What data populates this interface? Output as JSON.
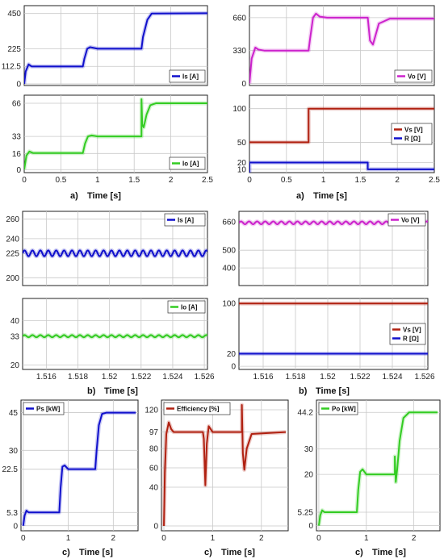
{
  "captions": {
    "row1_left": "a)",
    "row1_right": "a)",
    "row2_left": "b)",
    "row2_right": "b)",
    "row3_left": "c)",
    "row3_mid": "c)",
    "row3_right": "c)"
  },
  "xlabel": "Time [s]",
  "chart_data": [
    {
      "id": "is_a",
      "type": "line",
      "xlim": [
        0,
        2.5
      ],
      "ylim": [
        -10,
        500
      ],
      "xticks": [],
      "yticks": [
        0,
        112.5,
        225,
        450
      ],
      "ytick_labels": [
        "0",
        "112.5",
        "225",
        "450"
      ],
      "grid": true,
      "legend_position": "bottom-right",
      "series": [
        {
          "name": "Is [A]",
          "color": "#1010cc",
          "x": [
            0,
            0.02,
            0.06,
            0.1,
            0.2,
            0.8,
            0.82,
            0.86,
            0.9,
            1.0,
            1.6,
            1.62,
            1.68,
            1.74,
            2.5
          ],
          "y": [
            0,
            80,
            125,
            112,
            112,
            112,
            160,
            225,
            235,
            225,
            225,
            300,
            410,
            450,
            452
          ]
        }
      ]
    },
    {
      "id": "vo_a",
      "type": "line",
      "xlim": [
        0,
        2.5
      ],
      "ylim": [
        -20,
        780
      ],
      "xticks": [],
      "yticks": [
        0,
        330,
        660
      ],
      "ytick_labels": [
        "0",
        "330",
        "660"
      ],
      "grid": true,
      "legend_position": "bottom-right",
      "series": [
        {
          "name": "Vo [V]",
          "color": "#cc22cc",
          "x": [
            0,
            0.03,
            0.08,
            0.12,
            0.2,
            0.3,
            0.8,
            0.82,
            0.86,
            0.9,
            0.95,
            1.05,
            1.6,
            1.63,
            1.67,
            1.75,
            1.9,
            2.5
          ],
          "y": [
            0,
            250,
            360,
            340,
            330,
            330,
            330,
            450,
            660,
            700,
            670,
            660,
            660,
            430,
            390,
            600,
            650,
            650
          ]
        }
      ]
    },
    {
      "id": "io_a",
      "type": "line",
      "xlim": [
        0,
        2.5
      ],
      "ylim": [
        -3,
        74
      ],
      "xticks": [
        0,
        0.5,
        1,
        1.5,
        2,
        2.5
      ],
      "xtick_labels": [
        "0",
        "0.5",
        "1",
        "1.5",
        "2",
        "2.5"
      ],
      "yticks": [
        0,
        16,
        33,
        66
      ],
      "ytick_labels": [
        "0",
        "16",
        "33",
        "66"
      ],
      "grid": true,
      "legend_position": "bottom-right",
      "series": [
        {
          "name": "Io [A]",
          "color": "#33cc22",
          "x": [
            0,
            0.03,
            0.07,
            0.12,
            0.3,
            0.8,
            0.83,
            0.87,
            0.92,
            1.0,
            1.6,
            1.6,
            1.61,
            1.63,
            1.67,
            1.72,
            1.8,
            2.5
          ],
          "y": [
            0,
            14,
            18,
            16.5,
            16.5,
            16.5,
            26,
            33,
            34,
            33,
            33,
            70,
            45,
            42,
            55,
            64,
            66,
            66
          ]
        }
      ]
    },
    {
      "id": "vs_r_a",
      "type": "line",
      "xlim": [
        0,
        2.5
      ],
      "ylim": [
        5,
        120
      ],
      "xticks": [
        0,
        0.5,
        1,
        1.5,
        2,
        2.5
      ],
      "xtick_labels": [
        "0",
        "0.5",
        "1",
        "1.5",
        "2",
        "2.5"
      ],
      "yticks": [
        10,
        20,
        50,
        100
      ],
      "ytick_labels": [
        "10",
        "20",
        "50",
        "100"
      ],
      "grid": true,
      "legend_position": "center-right",
      "series": [
        {
          "name": "Vs [V]",
          "color": "#b02010",
          "x": [
            0,
            0.8,
            0.8,
            2.5
          ],
          "y": [
            50,
            50,
            100,
            100
          ]
        },
        {
          "name": "R [Ω]",
          "color": "#1010cc",
          "x": [
            0,
            0,
            0.01,
            1.6,
            1.6,
            2.5
          ],
          "y": [
            5,
            20,
            20,
            20,
            10,
            10
          ]
        }
      ]
    },
    {
      "id": "is_b",
      "type": "line",
      "xlim": [
        1.5145,
        1.5262
      ],
      "ylim": [
        192,
        268
      ],
      "xticks": [],
      "yticks": [
        200,
        225,
        240,
        260
      ],
      "ytick_labels": [
        "200",
        "225",
        "240",
        "260"
      ],
      "grid": true,
      "legend_position": "top-right",
      "ripple": {
        "period": 0.0005,
        "amplitude": 3
      },
      "series": [
        {
          "name": "Is [A]",
          "color": "#1010cc",
          "x": [
            1.5145,
            1.5262
          ],
          "y": [
            225,
            225
          ]
        }
      ]
    },
    {
      "id": "vo_b",
      "type": "line",
      "xlim": [
        1.5145,
        1.5262
      ],
      "ylim": [
        300,
        720
      ],
      "xticks": [],
      "yticks": [
        400,
        500,
        660
      ],
      "ytick_labels": [
        "400",
        "500",
        "660"
      ],
      "grid": true,
      "legend_position": "top-right",
      "ripple": {
        "period": 0.0005,
        "amplitude": 8
      },
      "series": [
        {
          "name": "Vo [V]",
          "color": "#cc22cc",
          "x": [
            1.5145,
            1.5262
          ],
          "y": [
            655,
            655
          ]
        }
      ]
    },
    {
      "id": "io_b",
      "type": "line",
      "xlim": [
        1.5145,
        1.5262
      ],
      "ylim": [
        18,
        50
      ],
      "xticks": [
        1.516,
        1.518,
        1.52,
        1.522,
        1.524,
        1.526
      ],
      "xtick_labels": [
        "1.516",
        "1.518",
        "1.52",
        "1.522",
        "1.524",
        "1.526"
      ],
      "yticks": [
        20,
        33,
        40
      ],
      "ytick_labels": [
        "20",
        "33",
        "40"
      ],
      "grid": true,
      "legend_position": "top-right",
      "ripple": {
        "period": 0.0005,
        "amplitude": 0.5
      },
      "series": [
        {
          "name": "Io [A]",
          "color": "#33cc22",
          "x": [
            1.5145,
            1.5262
          ],
          "y": [
            33,
            33
          ]
        }
      ]
    },
    {
      "id": "vs_r_b",
      "type": "line",
      "xlim": [
        1.5145,
        1.5262
      ],
      "ylim": [
        -5,
        108
      ],
      "xticks": [
        1.516,
        1.518,
        1.52,
        1.522,
        1.524,
        1.526
      ],
      "xtick_labels": [
        "1.516",
        "1.518",
        "1.52",
        "1.522",
        "1.524",
        "1.526"
      ],
      "yticks": [
        0,
        20,
        100
      ],
      "ytick_labels": [
        "0",
        "20",
        "100"
      ],
      "grid": true,
      "legend_position": "center-right",
      "series": [
        {
          "name": "Vs [V]",
          "color": "#b02010",
          "x": [
            1.5145,
            1.5262
          ],
          "y": [
            100,
            100
          ]
        },
        {
          "name": "R [Ω]",
          "color": "#1010cc",
          "x": [
            1.5145,
            1.5262
          ],
          "y": [
            20,
            20
          ]
        }
      ]
    },
    {
      "id": "ps_c",
      "type": "line",
      "xlim": [
        -0.05,
        2.55
      ],
      "ylim": [
        -2,
        50
      ],
      "xticks": [
        0,
        1,
        2
      ],
      "xtick_labels": [
        "0",
        "1",
        "2"
      ],
      "yticks": [
        0,
        5.3,
        22.5,
        30,
        45
      ],
      "ytick_labels": [
        "0",
        "5.3",
        "22.5",
        "30",
        "45"
      ],
      "grid": true,
      "legend_position": "top-left",
      "series": [
        {
          "name": "Ps [kW]",
          "color": "#1010cc",
          "x": [
            0,
            0.03,
            0.07,
            0.12,
            0.3,
            0.8,
            0.83,
            0.87,
            0.92,
            1.0,
            1.6,
            1.63,
            1.68,
            1.75,
            1.85,
            2.5
          ],
          "y": [
            0,
            4,
            6,
            5.3,
            5.3,
            5.3,
            15,
            23.5,
            24,
            22.5,
            22.5,
            30,
            40,
            44.5,
            45,
            45
          ]
        }
      ]
    },
    {
      "id": "eff_c",
      "type": "line",
      "xlim": [
        -0.05,
        2.55
      ],
      "ylim": [
        -5,
        130
      ],
      "xticks": [
        0,
        1,
        2
      ],
      "xtick_labels": [
        "0",
        "1",
        "2"
      ],
      "yticks": [
        0,
        40,
        60,
        80,
        97,
        120
      ],
      "ytick_labels": [
        "0",
        "40",
        "60",
        "80",
        "97",
        "120"
      ],
      "grid": true,
      "legend_position": "top-left",
      "series": [
        {
          "name": "Efficiency [%]",
          "color": "#b02010",
          "x": [
            0,
            0.02,
            0.05,
            0.1,
            0.15,
            0.2,
            0.8,
            0.82,
            0.85,
            0.88,
            0.92,
            1.0,
            1.6,
            1.6,
            1.62,
            1.65,
            1.7,
            1.8,
            2.5
          ],
          "y": [
            0,
            55,
            95,
            107,
            100,
            97,
            97,
            90,
            42,
            85,
            103,
            97,
            97,
            125,
            75,
            58,
            80,
            95,
            97
          ]
        }
      ]
    },
    {
      "id": "po_c",
      "type": "line",
      "xlim": [
        -0.05,
        2.55
      ],
      "ylim": [
        -2,
        49
      ],
      "xticks": [
        0,
        1,
        2
      ],
      "xtick_labels": [
        "0",
        "1",
        "2"
      ],
      "yticks": [
        0,
        5.25,
        20,
        30,
        44.2
      ],
      "ytick_labels": [
        "0",
        "5.25",
        "20",
        "30",
        "44.2"
      ],
      "grid": true,
      "legend_position": "top-left",
      "series": [
        {
          "name": "Po [kW]",
          "color": "#33cc22",
          "x": [
            0,
            0.03,
            0.07,
            0.12,
            0.3,
            0.8,
            0.83,
            0.87,
            0.92,
            1.0,
            1.6,
            1.6,
            1.62,
            1.65,
            1.7,
            1.78,
            1.9,
            2.5
          ],
          "y": [
            0,
            4,
            6,
            5.25,
            5.25,
            5.25,
            14,
            21,
            22,
            20,
            20,
            27,
            17,
            22,
            33,
            42,
            44.2,
            44.2
          ]
        }
      ]
    }
  ]
}
